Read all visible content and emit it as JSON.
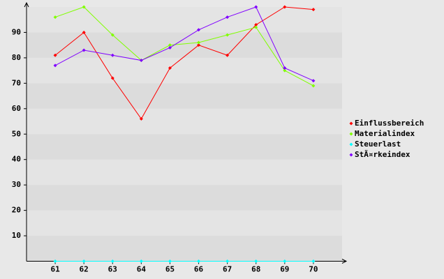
{
  "chart_data": {
    "type": "line",
    "x": [
      61,
      62,
      63,
      64,
      65,
      66,
      67,
      68,
      69,
      70
    ],
    "xlim": [
      60,
      71
    ],
    "xticks": [
      61,
      62,
      63,
      64,
      65,
      66,
      67,
      68,
      69,
      70
    ],
    "ylim": [
      0,
      100
    ],
    "yticks": [
      10,
      20,
      30,
      40,
      50,
      60,
      70,
      80,
      90
    ],
    "grid": true,
    "legend": "right",
    "series": [
      {
        "name": "Einflussbereich",
        "color": "#ff0000",
        "values": [
          81,
          90,
          72,
          56,
          76,
          85,
          81,
          93,
          100,
          99
        ]
      },
      {
        "name": "Materialindex",
        "color": "#80ff00",
        "values": [
          96,
          100,
          89,
          79,
          85,
          86,
          89,
          92,
          75,
          69
        ]
      },
      {
        "name": "Steuerlast",
        "color": "#00ffff",
        "values": [
          0,
          0,
          0,
          0,
          0,
          0,
          0,
          0,
          0,
          0
        ]
      },
      {
        "name": "StÃ¤rkeindex",
        "color": "#8000ff",
        "values": [
          77,
          83,
          81,
          79,
          84,
          91,
          96,
          100,
          76,
          71
        ]
      }
    ]
  }
}
